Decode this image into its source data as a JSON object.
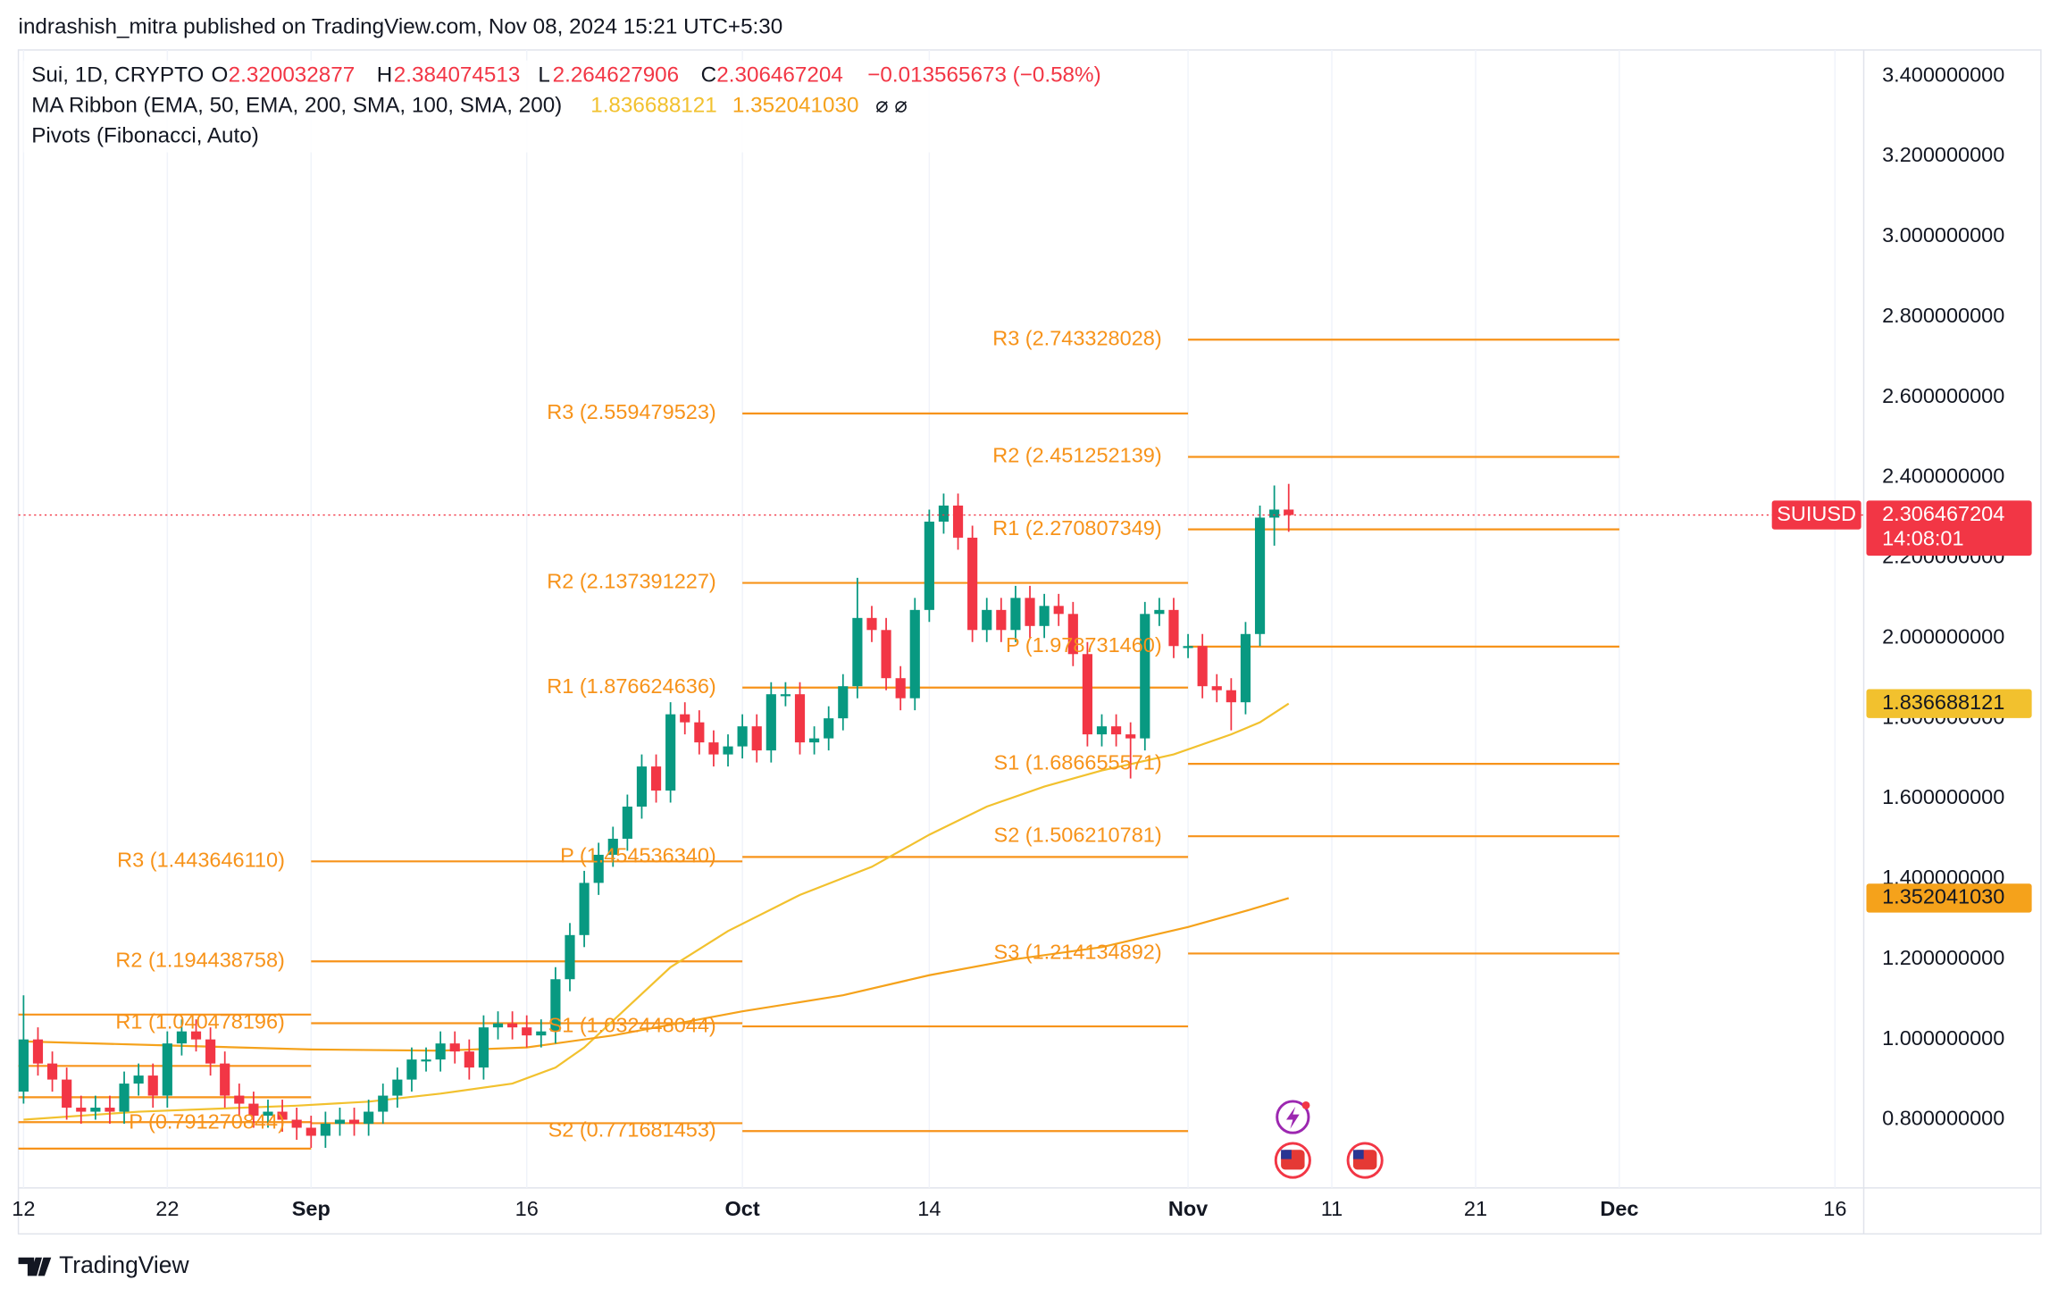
{
  "header": {
    "publisher": "indrashish_mitra published on TradingView.com, Nov 08, 2024 15:21 UTC+5:30",
    "footer": "TradingView"
  },
  "chart_data": {
    "type": "candlestick",
    "symbol_label": "Sui, 1D, CRYPTO",
    "open_key": "O",
    "high_key": "H",
    "low_key": "L",
    "close_key": "C",
    "change_label": "−0.013565673 (−0.58%)",
    "ma_legend": "MA Ribbon (EMA, 50, EMA, 200, SMA, 100, SMA, 200)",
    "ma_legend_na": "⌀  ⌀",
    "pivots_legend": "Pivots (Fibonacci, Auto)",
    "ticker": "SUIUSD",
    "countdown": "14:08:01",
    "up_color": "#089981",
    "down_color": "#f23645",
    "pivot_color": "#f7931a",
    "grid": true,
    "xlim": [
      "2024-08-11",
      "2024-12-18"
    ],
    "xticks": [
      {
        "value": "2024-08-12",
        "label": "12"
      },
      {
        "value": "2024-08-22",
        "label": "22"
      },
      {
        "value": "2024-09-01",
        "label": "Sep"
      },
      {
        "value": "2024-09-16",
        "label": "16"
      },
      {
        "value": "2024-10-01",
        "label": "Oct"
      },
      {
        "value": "2024-10-14",
        "label": "14"
      },
      {
        "value": "2024-11-01",
        "label": "Nov"
      },
      {
        "value": "2024-11-11",
        "label": "11"
      },
      {
        "value": "2024-11-21",
        "label": "21"
      },
      {
        "value": "2024-12-01",
        "label": "Dec"
      },
      {
        "value": "2024-12-16",
        "label": "16"
      }
    ],
    "ylim": [
      0.63,
      3.465
    ],
    "yticks": [
      {
        "value": 0.8,
        "label": "0.800000000"
      },
      {
        "value": 1.0,
        "label": "1.000000000"
      },
      {
        "value": 1.2,
        "label": "1.200000000"
      },
      {
        "value": 1.4,
        "label": "1.400000000"
      },
      {
        "value": 1.6,
        "label": "1.600000000"
      },
      {
        "value": 1.8,
        "label": "1.800000000"
      },
      {
        "value": 2.0,
        "label": "2.000000000"
      },
      {
        "value": 2.2,
        "label": "2.200000000"
      },
      {
        "value": 2.4,
        "label": "2.400000000"
      },
      {
        "value": 2.6,
        "label": "2.600000000"
      },
      {
        "value": 2.8,
        "label": "2.800000000"
      },
      {
        "value": 3.0,
        "label": "3.000000000"
      },
      {
        "value": 3.2,
        "label": "3.200000000"
      },
      {
        "value": 3.4,
        "label": "3.400000000"
      }
    ],
    "x": [
      "2024-08-12",
      "2024-08-13",
      "2024-08-14",
      "2024-08-15",
      "2024-08-16",
      "2024-08-17",
      "2024-08-18",
      "2024-08-19",
      "2024-08-20",
      "2024-08-21",
      "2024-08-22",
      "2024-08-23",
      "2024-08-24",
      "2024-08-25",
      "2024-08-26",
      "2024-08-27",
      "2024-08-28",
      "2024-08-29",
      "2024-08-30",
      "2024-08-31",
      "2024-09-01",
      "2024-09-02",
      "2024-09-03",
      "2024-09-04",
      "2024-09-05",
      "2024-09-06",
      "2024-09-07",
      "2024-09-08",
      "2024-09-09",
      "2024-09-10",
      "2024-09-11",
      "2024-09-12",
      "2024-09-13",
      "2024-09-14",
      "2024-09-15",
      "2024-09-16",
      "2024-09-17",
      "2024-09-18",
      "2024-09-19",
      "2024-09-20",
      "2024-09-21",
      "2024-09-22",
      "2024-09-23",
      "2024-09-24",
      "2024-09-25",
      "2024-09-26",
      "2024-09-27",
      "2024-09-28",
      "2024-09-29",
      "2024-09-30",
      "2024-10-01",
      "2024-10-02",
      "2024-10-03",
      "2024-10-04",
      "2024-10-05",
      "2024-10-06",
      "2024-10-07",
      "2024-10-08",
      "2024-10-09",
      "2024-10-10",
      "2024-10-11",
      "2024-10-12",
      "2024-10-13",
      "2024-10-14",
      "2024-10-15",
      "2024-10-16",
      "2024-10-17",
      "2024-10-18",
      "2024-10-19",
      "2024-10-20",
      "2024-10-21",
      "2024-10-22",
      "2024-10-23",
      "2024-10-24",
      "2024-10-25",
      "2024-10-26",
      "2024-10-27",
      "2024-10-28",
      "2024-10-29",
      "2024-10-30",
      "2024-10-31",
      "2024-11-01",
      "2024-11-02",
      "2024-11-03",
      "2024-11-04",
      "2024-11-05",
      "2024-11-06",
      "2024-11-07",
      "2024-11-08"
    ],
    "open": [
      0.87,
      1.0,
      0.94,
      0.9,
      0.83,
      0.82,
      0.83,
      0.82,
      0.89,
      0.91,
      0.86,
      0.99,
      1.02,
      1.0,
      0.94,
      0.86,
      0.84,
      0.81,
      0.82,
      0.8,
      0.78,
      0.76,
      0.79,
      0.8,
      0.79,
      0.82,
      0.86,
      0.9,
      0.95,
      0.95,
      0.99,
      0.97,
      0.93,
      1.03,
      1.04,
      1.03,
      1.01,
      1.02,
      1.15,
      1.26,
      1.39,
      1.46,
      1.5,
      1.58,
      1.68,
      1.62,
      1.81,
      1.79,
      1.74,
      1.71,
      1.73,
      1.78,
      1.72,
      1.86,
      1.86,
      1.74,
      1.75,
      1.8,
      1.88,
      2.05,
      2.02,
      1.9,
      1.85,
      2.07,
      2.29,
      2.33,
      2.25,
      2.02,
      2.07,
      2.02,
      2.1,
      2.03,
      2.08,
      2.06,
      1.96,
      1.76,
      1.78,
      1.76,
      1.75,
      2.06,
      2.07,
      1.98,
      1.98,
      1.88,
      1.87,
      1.84,
      2.01,
      2.3,
      2.320032877
    ],
    "high": [
      1.11,
      1.03,
      0.97,
      0.93,
      0.86,
      0.86,
      0.86,
      0.92,
      0.94,
      0.94,
      1.02,
      1.05,
      1.05,
      1.03,
      0.97,
      0.89,
      0.87,
      0.85,
      0.85,
      0.83,
      0.81,
      0.82,
      0.83,
      0.83,
      0.85,
      0.89,
      0.93,
      0.98,
      0.98,
      1.02,
      1.02,
      1.0,
      1.06,
      1.07,
      1.07,
      1.06,
      1.05,
      1.18,
      1.29,
      1.42,
      1.49,
      1.53,
      1.61,
      1.71,
      1.71,
      1.84,
      1.84,
      1.82,
      1.77,
      1.76,
      1.81,
      1.81,
      1.89,
      1.89,
      1.89,
      1.78,
      1.83,
      1.91,
      2.15,
      2.08,
      2.05,
      1.93,
      2.1,
      2.32,
      2.36,
      2.36,
      2.28,
      2.1,
      2.1,
      2.13,
      2.13,
      2.11,
      2.11,
      2.09,
      1.99,
      1.81,
      1.81,
      1.79,
      2.09,
      2.1,
      2.1,
      2.01,
      2.01,
      1.91,
      1.9,
      2.04,
      2.33,
      2.38,
      2.384074513
    ],
    "low": [
      0.84,
      0.91,
      0.87,
      0.8,
      0.79,
      0.8,
      0.79,
      0.79,
      0.86,
      0.83,
      0.83,
      0.96,
      0.97,
      0.91,
      0.83,
      0.81,
      0.78,
      0.78,
      0.77,
      0.75,
      0.73,
      0.73,
      0.76,
      0.76,
      0.76,
      0.79,
      0.83,
      0.87,
      0.92,
      0.92,
      0.94,
      0.9,
      0.9,
      1.0,
      1.0,
      0.98,
      0.98,
      0.99,
      1.12,
      1.23,
      1.36,
      1.43,
      1.47,
      1.55,
      1.59,
      1.59,
      1.76,
      1.71,
      1.68,
      1.68,
      1.7,
      1.69,
      1.69,
      1.83,
      1.71,
      1.71,
      1.72,
      1.77,
      1.85,
      1.99,
      1.87,
      1.82,
      1.82,
      2.04,
      2.26,
      2.22,
      1.99,
      1.99,
      1.99,
      1.99,
      2.0,
      2.0,
      2.03,
      1.93,
      1.73,
      1.73,
      1.73,
      1.65,
      1.72,
      2.03,
      1.95,
      1.95,
      1.85,
      1.84,
      1.77,
      1.81,
      1.98,
      2.23,
      2.264627906
    ],
    "close": [
      1.0,
      0.94,
      0.9,
      0.83,
      0.82,
      0.83,
      0.82,
      0.89,
      0.91,
      0.86,
      0.99,
      1.02,
      1.0,
      0.94,
      0.86,
      0.84,
      0.81,
      0.82,
      0.8,
      0.78,
      0.76,
      0.79,
      0.8,
      0.79,
      0.82,
      0.86,
      0.9,
      0.95,
      0.95,
      0.99,
      0.97,
      0.93,
      1.03,
      1.04,
      1.03,
      1.01,
      1.02,
      1.15,
      1.26,
      1.39,
      1.46,
      1.5,
      1.58,
      1.68,
      1.62,
      1.81,
      1.79,
      1.74,
      1.71,
      1.73,
      1.78,
      1.72,
      1.86,
      1.86,
      1.74,
      1.75,
      1.8,
      1.88,
      2.05,
      2.02,
      1.9,
      1.85,
      2.07,
      2.29,
      2.33,
      2.25,
      2.02,
      2.07,
      2.02,
      2.1,
      2.03,
      2.08,
      2.06,
      1.96,
      1.76,
      1.78,
      1.76,
      1.75,
      2.06,
      2.07,
      1.98,
      1.98,
      1.88,
      1.87,
      1.84,
      2.01,
      2.3,
      2.32,
      2.306467204
    ],
    "series": [
      {
        "color": "#f2c12e",
        "x": [
          "2024-08-12",
          "2024-08-20",
          "2024-08-31",
          "2024-09-05",
          "2024-09-10",
          "2024-09-15",
          "2024-09-18",
          "2024-09-20",
          "2024-09-23",
          "2024-09-26",
          "2024-09-30",
          "2024-10-05",
          "2024-10-10",
          "2024-10-14",
          "2024-10-18",
          "2024-10-22",
          "2024-10-26",
          "2024-10-31",
          "2024-11-04",
          "2024-11-06",
          "2024-11-08"
        ],
        "values": [
          0.8,
          0.82,
          0.835,
          0.845,
          0.865,
          0.89,
          0.93,
          0.98,
          1.08,
          1.18,
          1.27,
          1.36,
          1.43,
          1.51,
          1.58,
          1.63,
          1.67,
          1.71,
          1.76,
          1.79,
          1.836688121
        ]
      },
      {
        "color": "#f5a21b",
        "x": [
          "2024-08-12",
          "2024-08-22",
          "2024-09-01",
          "2024-09-10",
          "2024-09-16",
          "2024-09-22",
          "2024-10-01",
          "2024-10-08",
          "2024-10-14",
          "2024-10-20",
          "2024-10-26",
          "2024-11-01",
          "2024-11-05",
          "2024-11-08"
        ],
        "values": [
          0.995,
          0.985,
          0.975,
          0.972,
          0.98,
          1.01,
          1.07,
          1.11,
          1.16,
          1.2,
          1.23,
          1.28,
          1.32,
          1.35204103
        ],
        "value_labels": [
          null,
          null,
          null,
          null,
          null,
          null,
          null,
          null,
          null,
          null,
          null,
          null,
          null,
          "1.352041030"
        ]
      }
    ],
    "pivots": [
      {
        "start": "2024-08-01",
        "end": "2024-09-01",
        "levels": [
          {
            "label": null,
            "value": 1.062
          },
          {
            "label": null,
            "value": 0.934
          },
          {
            "label": null,
            "value": 0.856
          },
          {
            "label": null,
            "value": 0.794
          },
          {
            "label": null,
            "value": 0.728
          }
        ]
      },
      {
        "start": "2024-09-01",
        "end": "2024-10-01",
        "levels": [
          {
            "label": "R3 (1.443646110)",
            "value": 1.44364611
          },
          {
            "label": "R2 (1.194438758)",
            "value": 1.194438758
          },
          {
            "label": "R1 (1.040478196)",
            "value": 1.040478196
          },
          {
            "label": "P (0.791270844)",
            "value": 0.791270844
          }
        ]
      },
      {
        "start": "2024-10-01",
        "end": "2024-11-01",
        "levels": [
          {
            "label": "R3 (2.559479523)",
            "value": 2.559479523
          },
          {
            "label": "R2 (2.137391227)",
            "value": 2.137391227
          },
          {
            "label": "R1 (1.876624636)",
            "value": 1.876624636
          },
          {
            "label": "P (1.454536340)",
            "value": 1.45453634
          },
          {
            "label": "S1 (1.032448044)",
            "value": 1.032448044
          },
          {
            "label": "S2 (0.771681453)",
            "value": 0.771681453
          }
        ]
      },
      {
        "start": "2024-11-01",
        "end": "2024-12-01",
        "levels": [
          {
            "label": "R3 (2.743328028)",
            "value": 2.743328028
          },
          {
            "label": "R2 (2.451252139)",
            "value": 2.451252139
          },
          {
            "label": "R1 (2.270807349)",
            "value": 2.270807349
          },
          {
            "label": "P (1.978731460)",
            "value": 1.97873146
          },
          {
            "label": "S1 (1.686655571)",
            "value": 1.686655571
          },
          {
            "label": "S2 (1.506210781)",
            "value": 1.506210781
          },
          {
            "label": "S3 (1.214134892)",
            "value": 1.214134892
          }
        ]
      }
    ]
  }
}
